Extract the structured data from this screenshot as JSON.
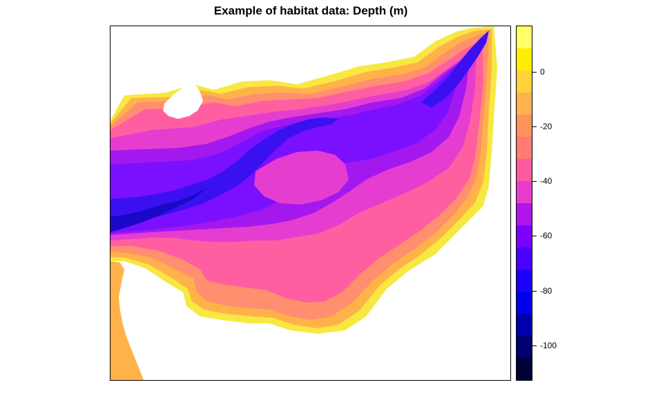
{
  "title": "Example of habitat data: Depth (m)",
  "legend": {
    "range": [
      -113,
      17
    ],
    "tick_labels": [
      "0",
      "-20",
      "-40",
      "-60",
      "-80",
      "-100"
    ],
    "tick_values": [
      0,
      -20,
      -40,
      -60,
      -80,
      -100
    ],
    "colors_top_to_bottom": [
      "#ffff66",
      "#ffee00",
      "#ffd23a",
      "#ffb04f",
      "#ff935c",
      "#ff7a72",
      "#ff5aa0",
      "#e83ccc",
      "#b016ea",
      "#7a00ff",
      "#4a00ff",
      "#1a00ff",
      "#0000ee",
      "#0000aa",
      "#000070",
      "#000038"
    ]
  },
  "map": {
    "colors": {
      "yellow": "#f7e842",
      "orange": "#ffb24a",
      "salmon": "#ff8f6e",
      "pink": "#ff5fa0",
      "magenta": "#e63dd1",
      "violet": "#a318ee",
      "purple": "#7a10ff",
      "blue": "#3a10f0",
      "deep": "#1a08c8"
    }
  }
}
